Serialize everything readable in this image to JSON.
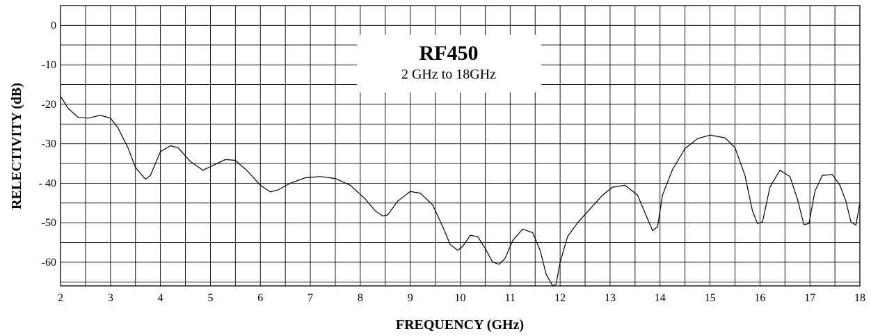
{
  "chart_data": {
    "type": "line",
    "title": "RF450",
    "subtitle": "2 GHz to 18GHz",
    "xlabel": "FREQUENCY (GHz)",
    "ylabel": "RELECTIVITY (dB)",
    "xlim": [
      2,
      18
    ],
    "ylim": [
      -66,
      5
    ],
    "xticks": [
      2,
      3,
      4,
      5,
      6,
      7,
      8,
      9,
      10,
      11,
      12,
      13,
      14,
      15,
      16,
      17,
      18
    ],
    "yticks": [
      0,
      -10,
      -20,
      -30,
      -40,
      -50,
      -60
    ],
    "xtick_labels": [
      "2",
      "3",
      "4",
      "5",
      "6",
      "7",
      "8",
      "9",
      "10",
      "11",
      "12",
      "13",
      "14",
      "15",
      "16",
      "17",
      "18"
    ],
    "ytick_labels": [
      "0",
      "-10",
      "-20",
      "-30",
      "- 40",
      "-50",
      "-60"
    ],
    "grid": true,
    "series": [
      {
        "x": [
          2.0,
          2.15,
          2.35,
          2.55,
          2.8,
          3.0,
          3.15,
          3.35,
          3.5,
          3.7,
          3.8,
          4.0,
          4.2,
          4.35,
          4.6,
          4.85,
          5.05,
          5.3,
          5.5,
          5.75,
          6.0,
          6.2,
          6.35,
          6.6,
          6.9,
          7.2,
          7.5,
          7.8,
          8.1,
          8.3,
          8.45,
          8.55,
          8.75,
          9.0,
          9.2,
          9.45,
          9.65,
          9.8,
          9.95,
          10.05,
          10.2,
          10.35,
          10.5,
          10.65,
          10.78,
          10.9,
          11.05,
          11.25,
          11.45,
          11.6,
          11.72,
          11.85,
          11.92,
          12.0,
          12.15,
          12.35,
          12.6,
          12.85,
          13.05,
          13.3,
          13.55,
          13.7,
          13.85,
          13.95,
          14.05,
          14.25,
          14.5,
          14.75,
          15.0,
          15.3,
          15.5,
          15.7,
          15.85,
          15.95,
          16.05,
          16.2,
          16.4,
          16.6,
          16.75,
          16.88,
          16.98,
          17.1,
          17.25,
          17.45,
          17.6,
          17.72,
          17.82,
          17.92,
          18.0
        ],
        "y": [
          -18,
          -21,
          -23.3,
          -23.5,
          -22.8,
          -23.5,
          -26,
          -31,
          -36,
          -39,
          -38,
          -32,
          -30.5,
          -31,
          -34.5,
          -36.7,
          -35.5,
          -34,
          -34.2,
          -37,
          -40.5,
          -42.2,
          -41.7,
          -40,
          -38.6,
          -38.3,
          -38.8,
          -40.5,
          -44,
          -47,
          -48.3,
          -48,
          -44.5,
          -42.1,
          -42.5,
          -45.5,
          -51,
          -55.5,
          -57,
          -56,
          -53.2,
          -53.5,
          -56.5,
          -60,
          -60.5,
          -59,
          -54.5,
          -51.6,
          -52.5,
          -57,
          -63,
          -66,
          -65.5,
          -60,
          -53.5,
          -50,
          -46.5,
          -43,
          -41,
          -40.5,
          -43,
          -47.5,
          -52,
          -51,
          -43,
          -36.5,
          -31.2,
          -28.7,
          -27.8,
          -28.5,
          -31,
          -38,
          -47,
          -50.2,
          -49.8,
          -41,
          -36.7,
          -38.3,
          -44,
          -50.5,
          -50.2,
          -42,
          -38,
          -37.8,
          -40.5,
          -44.5,
          -49.8,
          -50.6,
          -45
        ]
      }
    ]
  }
}
